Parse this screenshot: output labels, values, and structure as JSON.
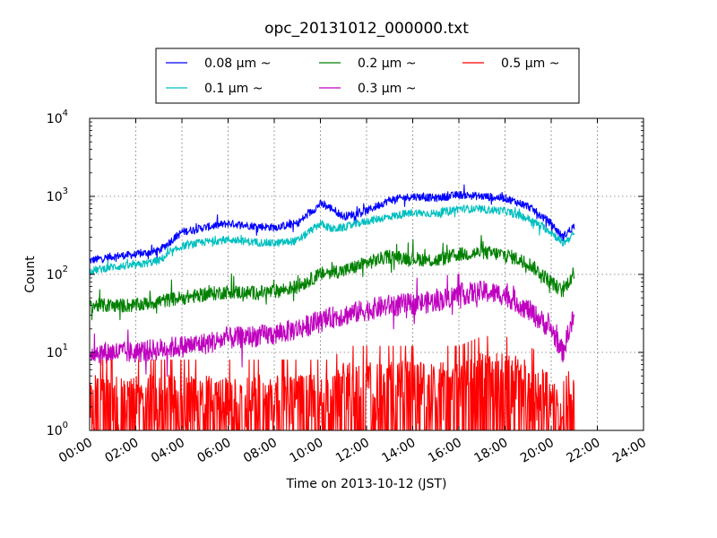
{
  "chart_data": {
    "type": "line",
    "title": "opc_20131012_000000.txt",
    "xlabel": "Time on 2013-10-12 (JST)",
    "ylabel": "Count",
    "yscale": "log",
    "ylim": [
      1,
      10000
    ],
    "xlim": [
      "00:00",
      "24:00"
    ],
    "grid": true,
    "legend_position": "top-center, outside plot",
    "x_ticks": [
      "00:00",
      "02:00",
      "04:00",
      "06:00",
      "08:00",
      "10:00",
      "12:00",
      "14:00",
      "16:00",
      "18:00",
      "20:00",
      "22:00",
      "24:00"
    ],
    "y_ticks": [
      {
        "base": "10",
        "exp": "0"
      },
      {
        "base": "10",
        "exp": "1"
      },
      {
        "base": "10",
        "exp": "2"
      },
      {
        "base": "10",
        "exp": "3"
      },
      {
        "base": "10",
        "exp": "4"
      }
    ],
    "x": [
      "00:00",
      "01:00",
      "02:00",
      "03:00",
      "04:00",
      "05:00",
      "06:00",
      "07:00",
      "08:00",
      "09:00",
      "10:00",
      "10:30",
      "11:00",
      "12:00",
      "13:00",
      "14:00",
      "15:00",
      "16:00",
      "17:00",
      "18:00",
      "19:00",
      "20:00",
      "20:30",
      "21:00"
    ],
    "series": [
      {
        "name": "0.08 µm ~",
        "color": "#0000ff",
        "values": [
          150,
          170,
          180,
          200,
          350,
          400,
          450,
          420,
          400,
          450,
          800,
          700,
          550,
          650,
          900,
          1000,
          950,
          1050,
          1000,
          950,
          750,
          450,
          300,
          420
        ]
      },
      {
        "name": "0.1 µm ~",
        "color": "#00bfbf",
        "values": [
          110,
          125,
          130,
          150,
          230,
          260,
          280,
          260,
          250,
          270,
          450,
          380,
          400,
          480,
          550,
          620,
          600,
          700,
          680,
          650,
          520,
          350,
          250,
          330
        ]
      },
      {
        "name": "0.2 µm ~",
        "color": "#008000",
        "values": [
          40,
          40,
          40,
          45,
          50,
          55,
          60,
          58,
          60,
          70,
          100,
          110,
          110,
          140,
          170,
          160,
          150,
          180,
          190,
          180,
          140,
          80,
          60,
          110
        ]
      },
      {
        "name": "0.3 µm ~",
        "color": "#bf00bf",
        "values": [
          10,
          10,
          10,
          11,
          12,
          13,
          15,
          16,
          17,
          20,
          25,
          28,
          30,
          35,
          40,
          42,
          45,
          55,
          60,
          55,
          35,
          20,
          10,
          30
        ]
      },
      {
        "name": "0.5 µm ~",
        "color": "#ff0000",
        "values": [
          2,
          2,
          2,
          2,
          2,
          2,
          2,
          2,
          2,
          2,
          2,
          2,
          3,
          3,
          3,
          3,
          3,
          3,
          4,
          4,
          3,
          2,
          1,
          2
        ]
      }
    ]
  }
}
